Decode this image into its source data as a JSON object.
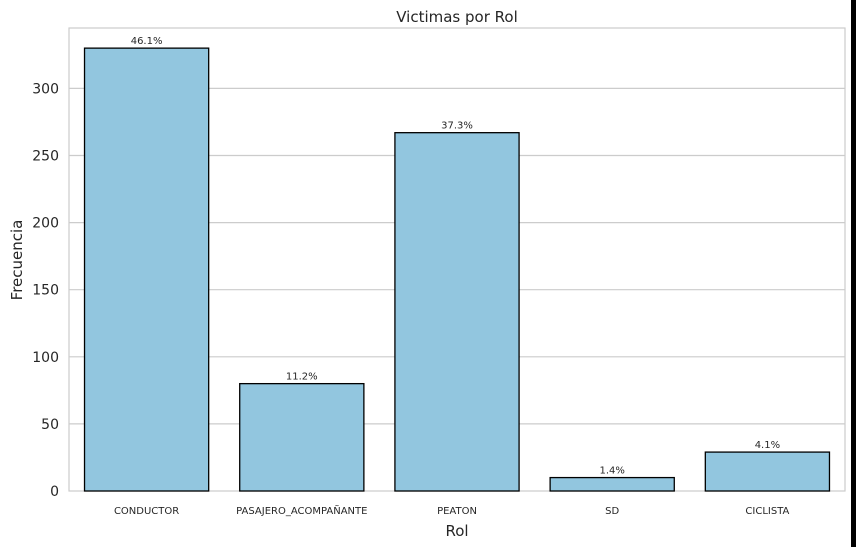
{
  "chart_data": {
    "type": "bar",
    "title": "Victimas por Rol",
    "xlabel": "Rol",
    "ylabel": "Frecuencia",
    "categories": [
      "CONDUCTOR",
      "PASAJERO_ACOMPAÑANTE",
      "PEATON",
      "SD",
      "CICLISTA"
    ],
    "values": [
      330,
      80,
      267,
      10,
      29
    ],
    "value_labels": [
      "46.1%",
      "11.2%",
      "37.3%",
      "1.4%",
      "4.1%"
    ],
    "yticks": [
      0,
      50,
      100,
      150,
      200,
      250,
      300
    ],
    "ylim": [
      0,
      345
    ],
    "grid": true,
    "bar_color": "#92c6df",
    "edge_color": "#000000"
  }
}
